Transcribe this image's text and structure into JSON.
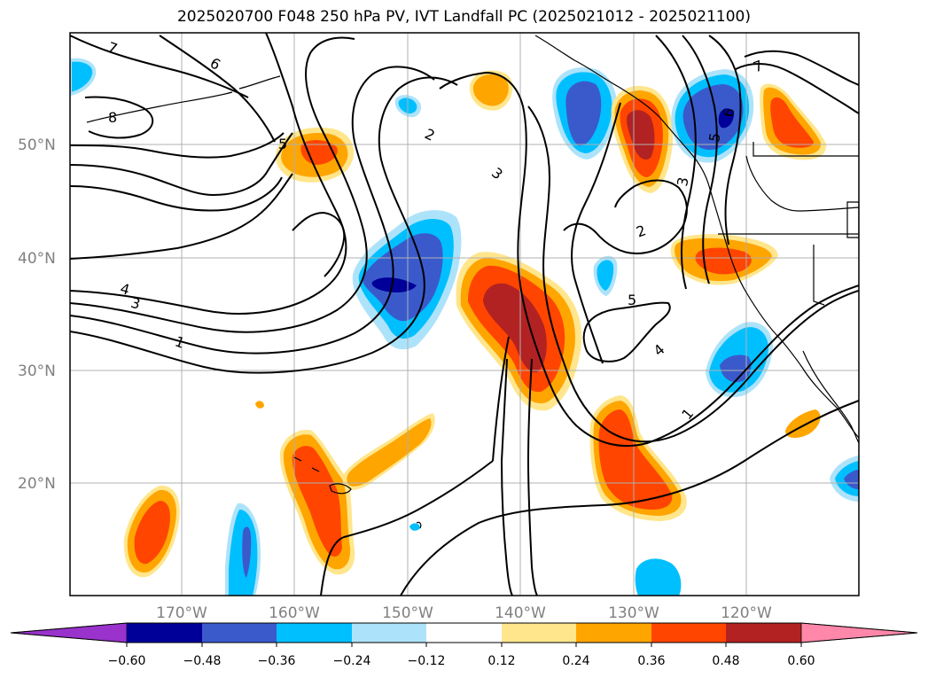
{
  "title": "2025020700 F048 250 hPa PV, IVT Landfall PC (2025021012 - 2025021100)",
  "map": {
    "lat_labels": [
      "50°N",
      "40°N",
      "30°N",
      "20°N"
    ],
    "lon_labels": [
      "170°W",
      "160°W",
      "150°W",
      "140°W",
      "130°W",
      "120°W"
    ],
    "contour_labels": [
      "7",
      "6",
      "8",
      "5",
      "2",
      "3",
      "4",
      "3",
      "1",
      "2",
      "5",
      "4",
      "1",
      "3",
      "5",
      "6",
      "7"
    ]
  },
  "colorbar": {
    "ticks": [
      "−0.60",
      "−0.48",
      "−0.36",
      "−0.24",
      "−0.12",
      "0.12",
      "0.24",
      "0.36",
      "0.48",
      "0.60"
    ],
    "colors": {
      "under": "#9933cc",
      "neg_060": "#000099",
      "neg_048": "#3a5acc",
      "neg_036": "#00bfff",
      "neg_024": "#ade3fa",
      "neutral": "#ffffff",
      "pos_012": "#ffe68c",
      "pos_024": "#ffa500",
      "pos_036": "#ff4500",
      "pos_048": "#b22222",
      "over": "#ff88aa"
    }
  }
}
